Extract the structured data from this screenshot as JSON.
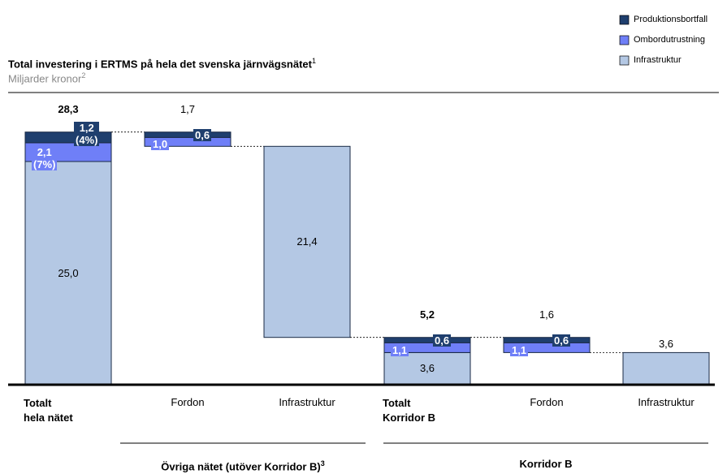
{
  "chart_data": {
    "type": "waterfall",
    "title": "Total investering i ERTMS på hela det svenska järnvägsnätet",
    "title_note": "1",
    "subtitle": "Miljarder kronor",
    "subtitle_note": "2",
    "categories": [
      "Totalt\nhela nätet",
      "Fordon",
      "Infrastruktur",
      "Totalt\nKorridor B",
      "Fordon",
      "Infrastruktur"
    ],
    "measure": [
      "total",
      "relative",
      "relative",
      "total",
      "relative",
      "relative"
    ],
    "series": [
      {
        "name": "Infrastruktur",
        "color": "#b4c8e4",
        "values": [
          25.0,
          null,
          21.4,
          3.6,
          null,
          3.6
        ],
        "value_labels": [
          "25,0",
          null,
          "21,4",
          "3,6",
          null,
          "3,6"
        ]
      },
      {
        "name": "Ombordutrustning",
        "color": "#6f7ff7",
        "values": [
          2.1,
          1.0,
          null,
          1.1,
          1.1,
          null
        ],
        "value_labels": [
          "2,1\n(7%)",
          "1,0",
          null,
          "1,1",
          "1,1",
          null
        ]
      },
      {
        "name": "Produktionsbortfall",
        "color": "#1f3f6e",
        "values": [
          1.2,
          0.6,
          null,
          0.6,
          0.6,
          null
        ],
        "value_labels": [
          "1,2\n(4%)",
          "0,6",
          null,
          "0,6",
          "0,6",
          null
        ]
      }
    ],
    "totals": {
      "values": [
        28.3,
        1.7,
        null,
        5.2,
        1.6,
        null
      ],
      "value_labels": [
        "28,3",
        "1,7",
        null,
        "5,2",
        "1,6",
        null
      ]
    },
    "groups": [
      {
        "label": "Övriga nätet (utöver Korridor B)",
        "note": "3"
      },
      {
        "label": "Korridor B",
        "note": null
      }
    ],
    "ylim": [
      0,
      30
    ],
    "legend": "top-right"
  }
}
